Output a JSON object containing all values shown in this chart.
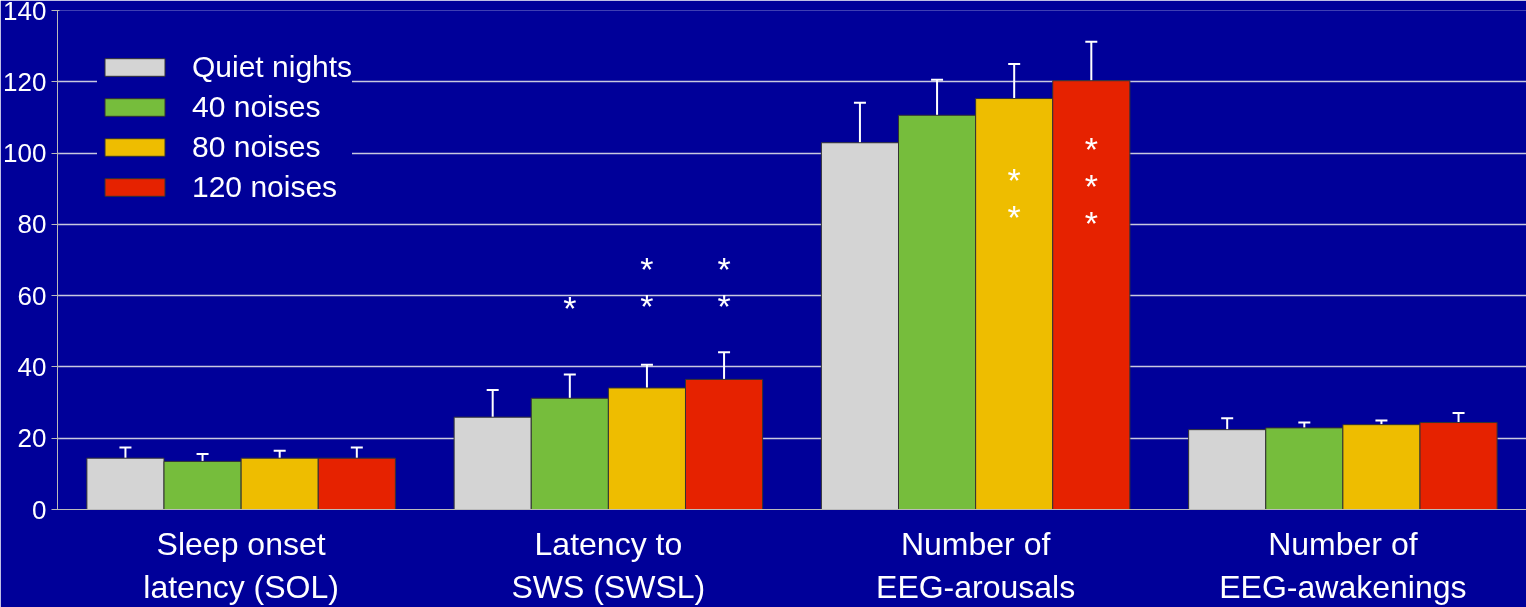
{
  "chart_data": {
    "type": "bar",
    "categories": [
      "Sleep onset latency (SOL)",
      "Latency to SWS (SWSL)",
      "Number of EEG-arousals",
      "Number of EEG-awakenings"
    ],
    "series": [
      {
        "name": "Quiet nights",
        "color": "#d4d4d4",
        "values": [
          14.4,
          25.9,
          102.9,
          22.4
        ],
        "errors": [
          [
            14.4,
            17.4
          ],
          [
            25.9,
            33.5
          ],
          [
            102.9,
            114.1
          ],
          [
            22.4,
            25.6
          ]
        ]
      },
      {
        "name": "40 noises",
        "color": "#76bd3c",
        "values": [
          13.5,
          31.2,
          110.6,
          22.9
        ],
        "errors": [
          [
            13.5,
            15.6
          ],
          [
            31.2,
            37.9
          ],
          [
            110.6,
            120.6
          ],
          [
            22.9,
            24.4
          ]
        ]
      },
      {
        "name": "80 noises",
        "color": "#eebd00",
        "values": [
          14.4,
          34.1,
          115.3,
          23.8
        ],
        "errors": [
          [
            14.4,
            16.5
          ],
          [
            34.1,
            40.6
          ],
          [
            115.3,
            125
          ],
          [
            23.8,
            25
          ]
        ]
      },
      {
        "name": "120 noises",
        "color": "#e62200",
        "values": [
          14.4,
          36.5,
          120.3,
          24.4
        ],
        "errors": [
          [
            14.4,
            17.4
          ],
          [
            36.5,
            44.1
          ],
          [
            120.3,
            131.2
          ],
          [
            24.4,
            27.1
          ]
        ]
      }
    ],
    "annotations": [
      "*",
      "*\n*",
      "*\n*",
      "*\n*",
      "*\n*\n*"
    ],
    "ylim": [
      0,
      140
    ],
    "yticks": [
      0,
      20,
      40,
      60,
      80,
      100,
      120,
      140
    ],
    "grid": "y",
    "legend": "top left"
  }
}
